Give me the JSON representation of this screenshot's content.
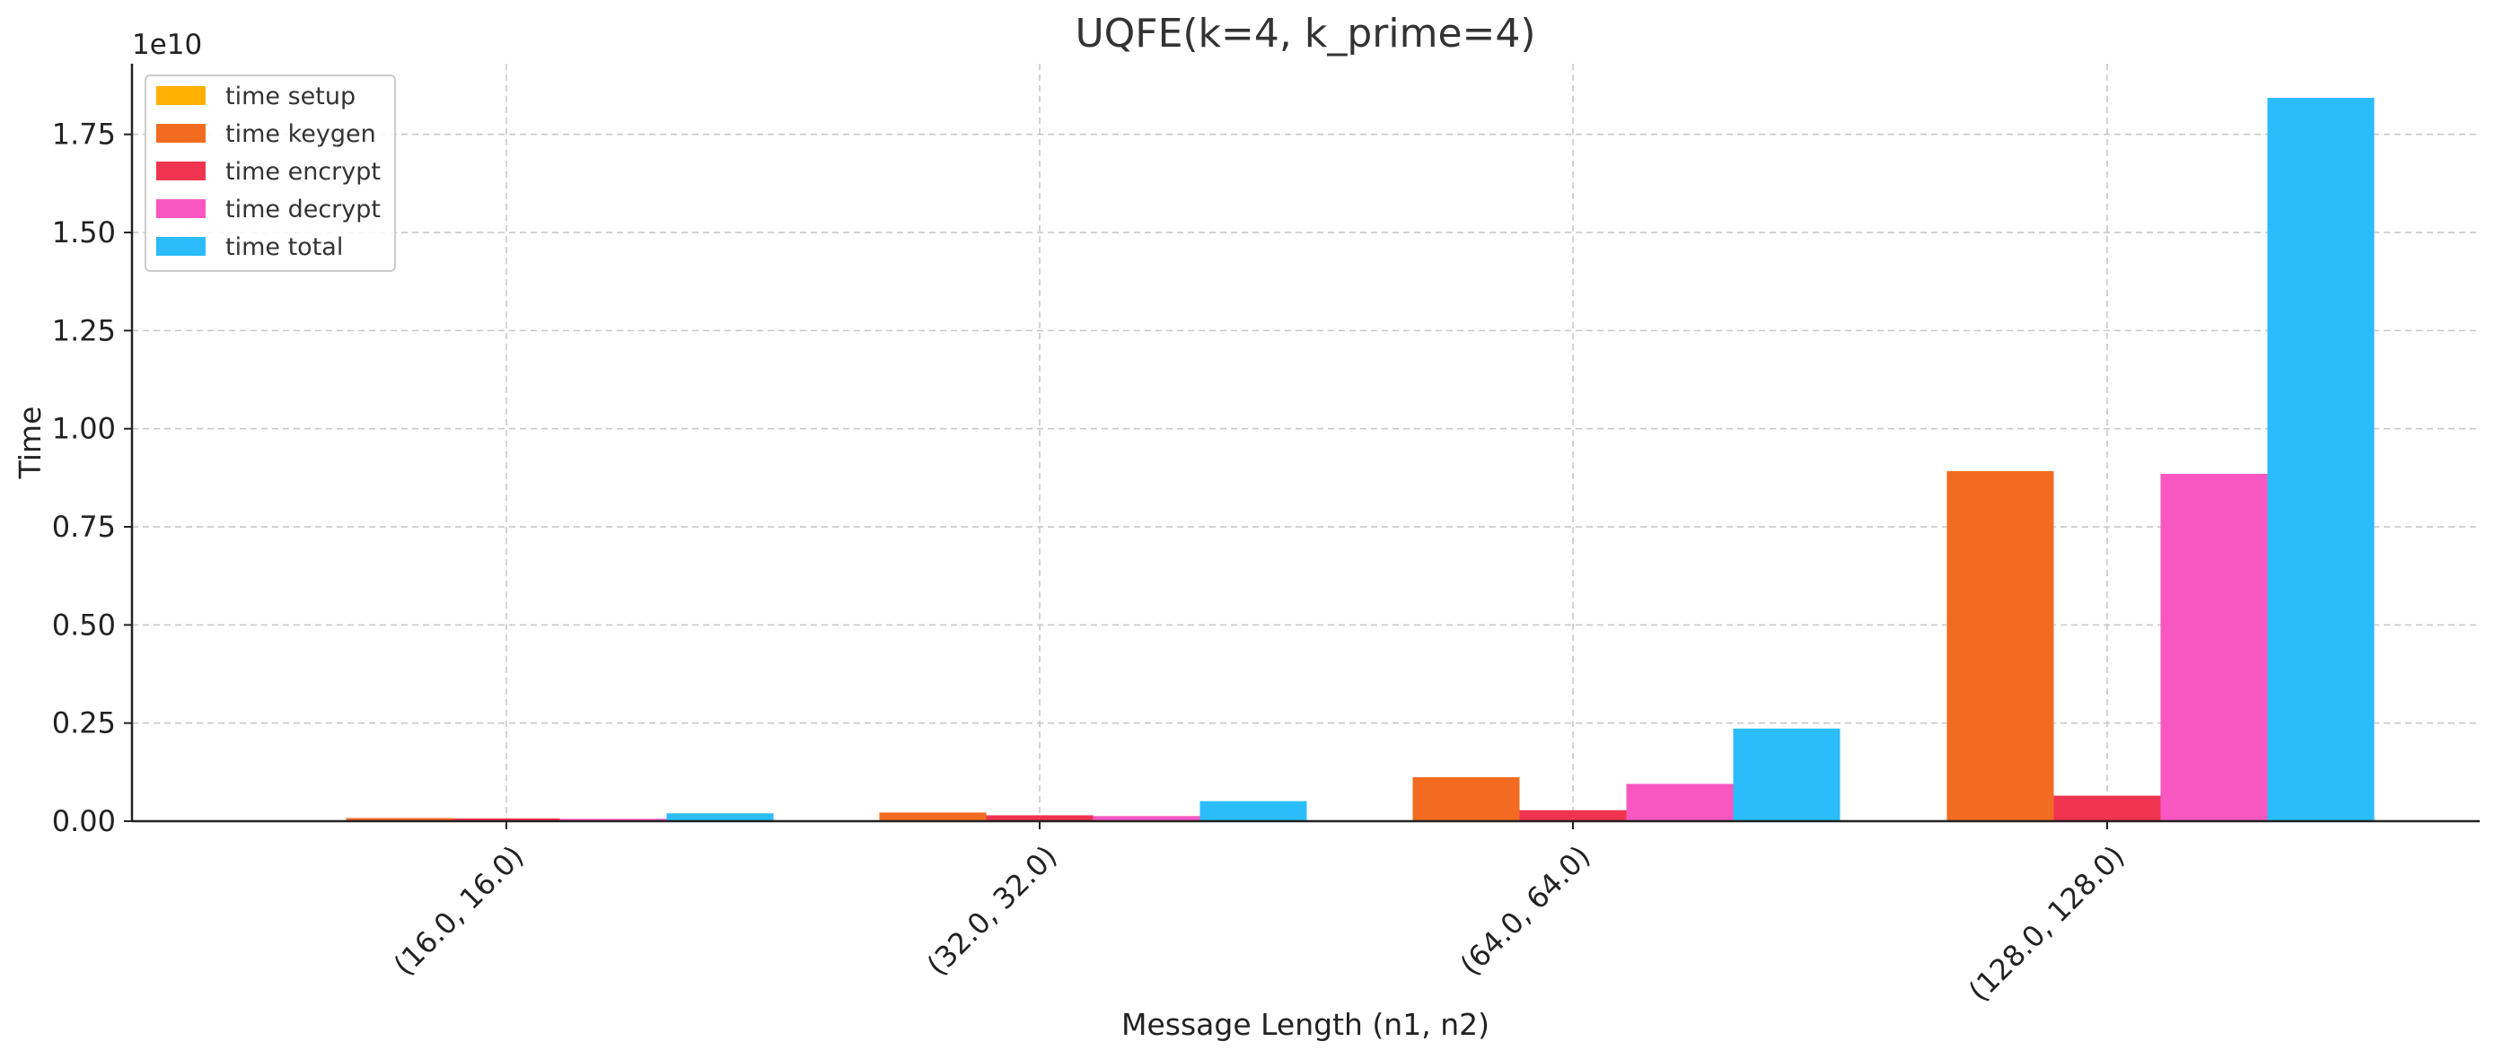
{
  "chart_data": {
    "type": "bar",
    "title": "UQFE(k=4, k_prime=4)",
    "xlabel": "Message Length (n1, n2)",
    "ylabel": "Time",
    "y_offset_label": "1e10",
    "y_scale": 10000000000,
    "ylim": [
      0,
      1.93
    ],
    "y_ticks": [
      0.0,
      0.25,
      0.5,
      0.75,
      1.0,
      1.25,
      1.5,
      1.75
    ],
    "y_tick_labels": [
      "0.00",
      "0.25",
      "0.50",
      "0.75",
      "1.00",
      "1.25",
      "1.50",
      "1.75"
    ],
    "categories": [
      "(16.0, 16.0)",
      "(32.0, 32.0)",
      "(64.0, 64.0)",
      "(128.0, 128.0)"
    ],
    "grid": true,
    "legend_position": "top-left",
    "series": [
      {
        "name": "time setup",
        "color": "#ffb000",
        "values": [
          0.0001,
          0.0002,
          0.0005,
          0.0012
        ]
      },
      {
        "name": "time keygen",
        "color": "#f26b21",
        "values": [
          0.008,
          0.022,
          0.112,
          0.892
        ]
      },
      {
        "name": "time encrypt",
        "color": "#f0344f",
        "values": [
          0.007,
          0.015,
          0.028,
          0.065
        ]
      },
      {
        "name": "time decrypt",
        "color": "#f857c1",
        "values": [
          0.006,
          0.013,
          0.095,
          0.885
        ]
      },
      {
        "name": "time total",
        "color": "#2bbcfc",
        "values": [
          0.02,
          0.051,
          0.236,
          1.843
        ]
      }
    ]
  }
}
